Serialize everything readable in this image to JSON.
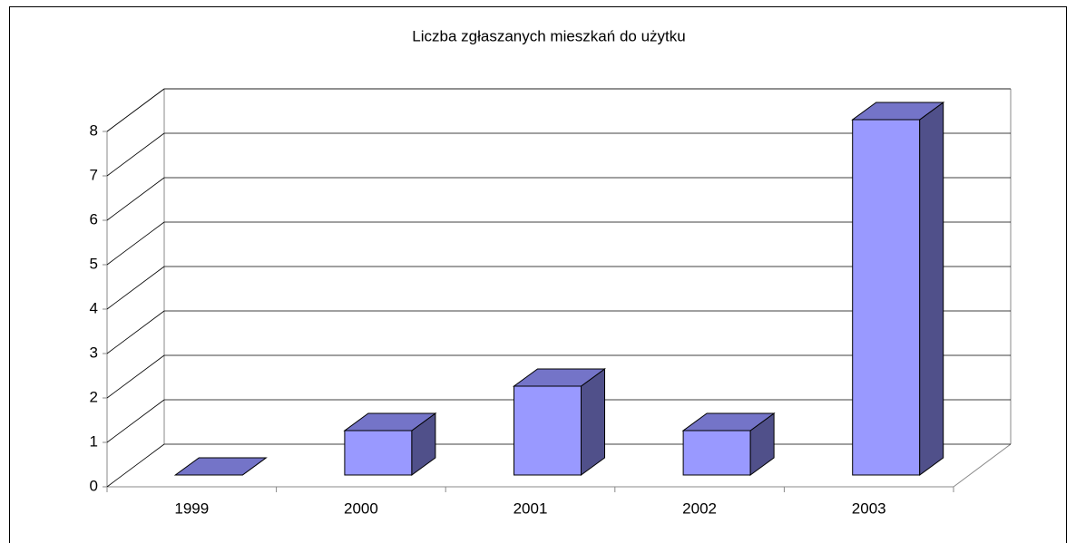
{
  "chart_data": {
    "type": "bar3d",
    "title": "Liczba zgłaszanych mieszkań do użytku",
    "categories": [
      "1999",
      "2000",
      "2001",
      "2002",
      "2003"
    ],
    "values": [
      0,
      1,
      2,
      1,
      8
    ],
    "color": "#9999ff",
    "ylim": [
      0,
      8
    ],
    "yticks": [
      0,
      1,
      2,
      3,
      4,
      5,
      6,
      7,
      8
    ],
    "grid": true
  }
}
